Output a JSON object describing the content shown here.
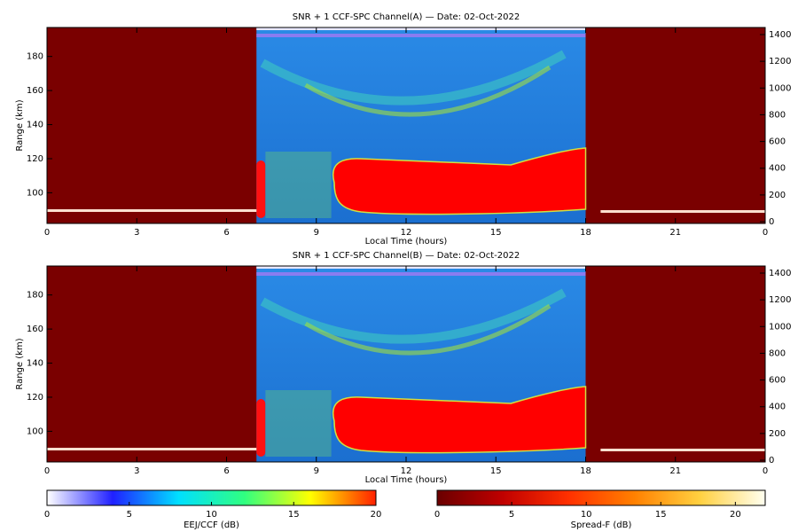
{
  "chart_data": [
    {
      "type": "heatmap",
      "title": "SNR + 1 CCF-SPC Channel(A) — Date: 02-Oct-2022",
      "xlabel": "Local Time (hours)",
      "ylabel": "Range (km)",
      "xlim": [
        0,
        24
      ],
      "xticks": [
        0,
        3,
        6,
        9,
        12,
        15,
        18,
        21,
        {
          "value": 24,
          "label": "0"
        }
      ],
      "ylim": [
        82,
        197
      ],
      "yticks": [
        100,
        120,
        140,
        160,
        180
      ],
      "y2lim": [
        -13,
        1453
      ],
      "y2ticks": [
        0,
        200,
        400,
        600,
        800,
        1000,
        1200,
        1400
      ]
    },
    {
      "type": "heatmap",
      "title": "SNR + 1 CCF-SPC Channel(B) — Date: 02-Oct-2022",
      "xlabel": "Local Time (hours)",
      "ylabel": "Range (km)",
      "xlim": [
        0,
        24
      ],
      "xticks": [
        0,
        3,
        6,
        9,
        12,
        15,
        18,
        21,
        {
          "value": 24,
          "label": "0"
        }
      ],
      "ylim": [
        82,
        197
      ],
      "yticks": [
        100,
        120,
        140,
        160,
        180
      ],
      "y2lim": [
        -13,
        1453
      ],
      "y2ticks": [
        0,
        200,
        400,
        600,
        800,
        1000,
        1200,
        1400
      ]
    },
    {
      "type": "colorbar",
      "label": "EEJ/CCF (dB)",
      "xlim": [
        0,
        20
      ],
      "xticks": [
        0,
        5,
        10,
        15,
        20
      ],
      "colors": [
        "#ffffff",
        "#2020ff",
        "#00e0ff",
        "#30ff80",
        "#ffff00",
        "#ff2000"
      ]
    },
    {
      "type": "colorbar",
      "label": "Spread-F (dB)",
      "xlim": [
        0,
        22
      ],
      "xticks": [
        0,
        5,
        10,
        15,
        20
      ],
      "colors": [
        "#6a0000",
        "#c00000",
        "#ff3000",
        "#ff8000",
        "#ffd040",
        "#fffff0"
      ]
    }
  ]
}
